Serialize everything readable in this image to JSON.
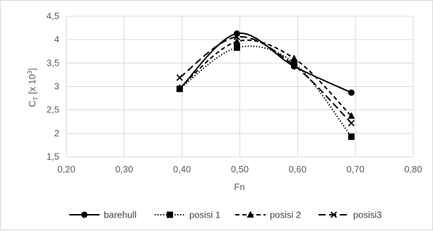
{
  "chart_data": {
    "type": "line",
    "title": "",
    "xlabel": "Fn",
    "ylabel": {
      "prefix": "C",
      "sub": "T",
      "middle": " [x 10",
      "sup": "3",
      "suffix": "]"
    },
    "xlim": [
      0.2,
      0.8
    ],
    "ylim": [
      1.5,
      4.5
    ],
    "x_ticks": [
      "0,20",
      "0,30",
      "0,40",
      "0,50",
      "0,60",
      "0,70",
      "0,80"
    ],
    "y_ticks": [
      "1,5",
      "2",
      "2,5",
      "3",
      "3,5",
      "4",
      "4,5"
    ],
    "x": [
      0.396,
      0.495,
      0.594,
      0.693
    ],
    "grid": true,
    "legend_position": "bottom",
    "series": [
      {
        "name": "barehull",
        "values": [
          2.95,
          4.13,
          3.43,
          2.87
        ],
        "marker": "circle",
        "dash": "solid",
        "color": "#000000"
      },
      {
        "name": "posisi 1",
        "values": [
          2.95,
          3.83,
          3.5,
          1.93
        ],
        "marker": "square",
        "dash": "dotted",
        "color": "#000000"
      },
      {
        "name": "posisi 2",
        "values": [
          2.97,
          3.96,
          3.6,
          2.37
        ],
        "marker": "triangle",
        "dash": "dashed",
        "color": "#000000"
      },
      {
        "name": "posisi3",
        "values": [
          3.19,
          4.06,
          3.45,
          2.22
        ],
        "marker": "x",
        "dash": "longdash",
        "color": "#000000"
      }
    ]
  }
}
